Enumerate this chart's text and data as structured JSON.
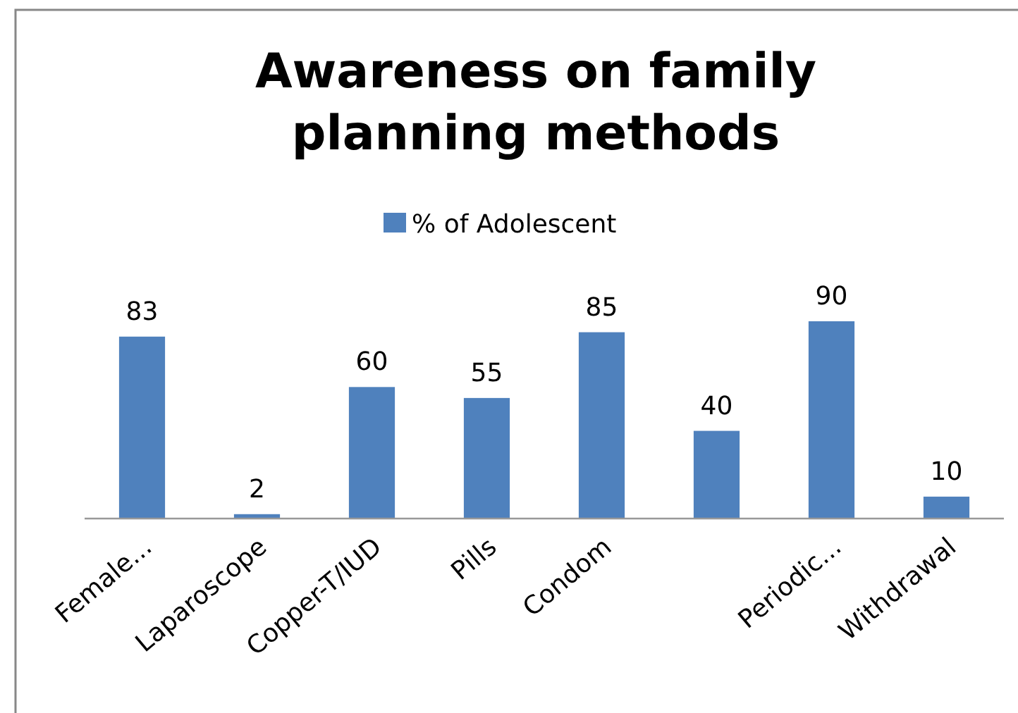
{
  "chart_data": {
    "type": "bar",
    "title": "Awareness on family planning methods",
    "categories": [
      "Female...",
      "Laparoscope",
      "Copper-T/IUD",
      "Pills",
      "Condom",
      null,
      "Periodic...",
      "Withdrawal"
    ],
    "series": [
      {
        "name": "% of Adolescent",
        "color": "#4f81bd",
        "values": [
          83,
          2,
          60,
          55,
          85,
          40,
          90,
          10
        ]
      }
    ],
    "data_labels": true,
    "legend": "top"
  }
}
